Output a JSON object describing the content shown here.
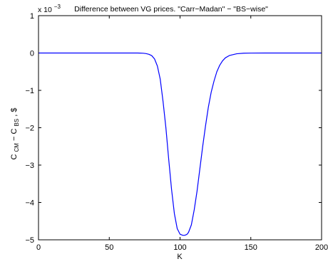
{
  "chart_data": {
    "type": "line",
    "title": "Difference between VG prices. \"Carr−Madan\" − \"BS−wise\"",
    "xlabel": "K",
    "ylabel": {
      "main": "C",
      "sub1": "CM",
      "mid": " − C",
      "sub2": "BS",
      "tail": ", $"
    },
    "y_multiplier": {
      "prefix": "x 10",
      "exponent": "−3"
    },
    "xlim": [
      0,
      200
    ],
    "ylim": [
      -5,
      1
    ],
    "xticks": [
      0,
      50,
      100,
      150,
      200
    ],
    "xtick_labels": [
      "0",
      "50",
      "100",
      "150",
      "200"
    ],
    "yticks": [
      -5,
      -4,
      -3,
      -2,
      -1,
      0,
      1
    ],
    "ytick_labels": [
      "−5",
      "−4",
      "−3",
      "−2",
      "−1",
      "0",
      "1"
    ],
    "grid": false,
    "line_color": "#0000ff",
    "series": [
      {
        "x": [
          0,
          10,
          20,
          30,
          40,
          50,
          60,
          65,
          70,
          72,
          74,
          76,
          78,
          80,
          82,
          84,
          86,
          88,
          90,
          92,
          94,
          96,
          98,
          100,
          102,
          103,
          104,
          105,
          106,
          108,
          110,
          112,
          114,
          116,
          118,
          120,
          122,
          124,
          126,
          128,
          130,
          132,
          135,
          140,
          145,
          150,
          160,
          170,
          180,
          190,
          200
        ],
        "y": [
          0,
          0,
          0,
          0,
          0,
          0,
          0,
          0,
          0,
          -0.002,
          -0.006,
          -0.016,
          -0.035,
          -0.07,
          -0.16,
          -0.35,
          -0.7,
          -1.3,
          -2.0,
          -2.85,
          -3.65,
          -4.3,
          -4.7,
          -4.85,
          -4.88,
          -4.88,
          -4.87,
          -4.85,
          -4.8,
          -4.6,
          -4.2,
          -3.7,
          -3.1,
          -2.5,
          -1.95,
          -1.45,
          -1.05,
          -0.75,
          -0.5,
          -0.33,
          -0.21,
          -0.13,
          -0.065,
          -0.02,
          -0.005,
          -0.001,
          0,
          0,
          0,
          0,
          0
        ]
      }
    ]
  }
}
